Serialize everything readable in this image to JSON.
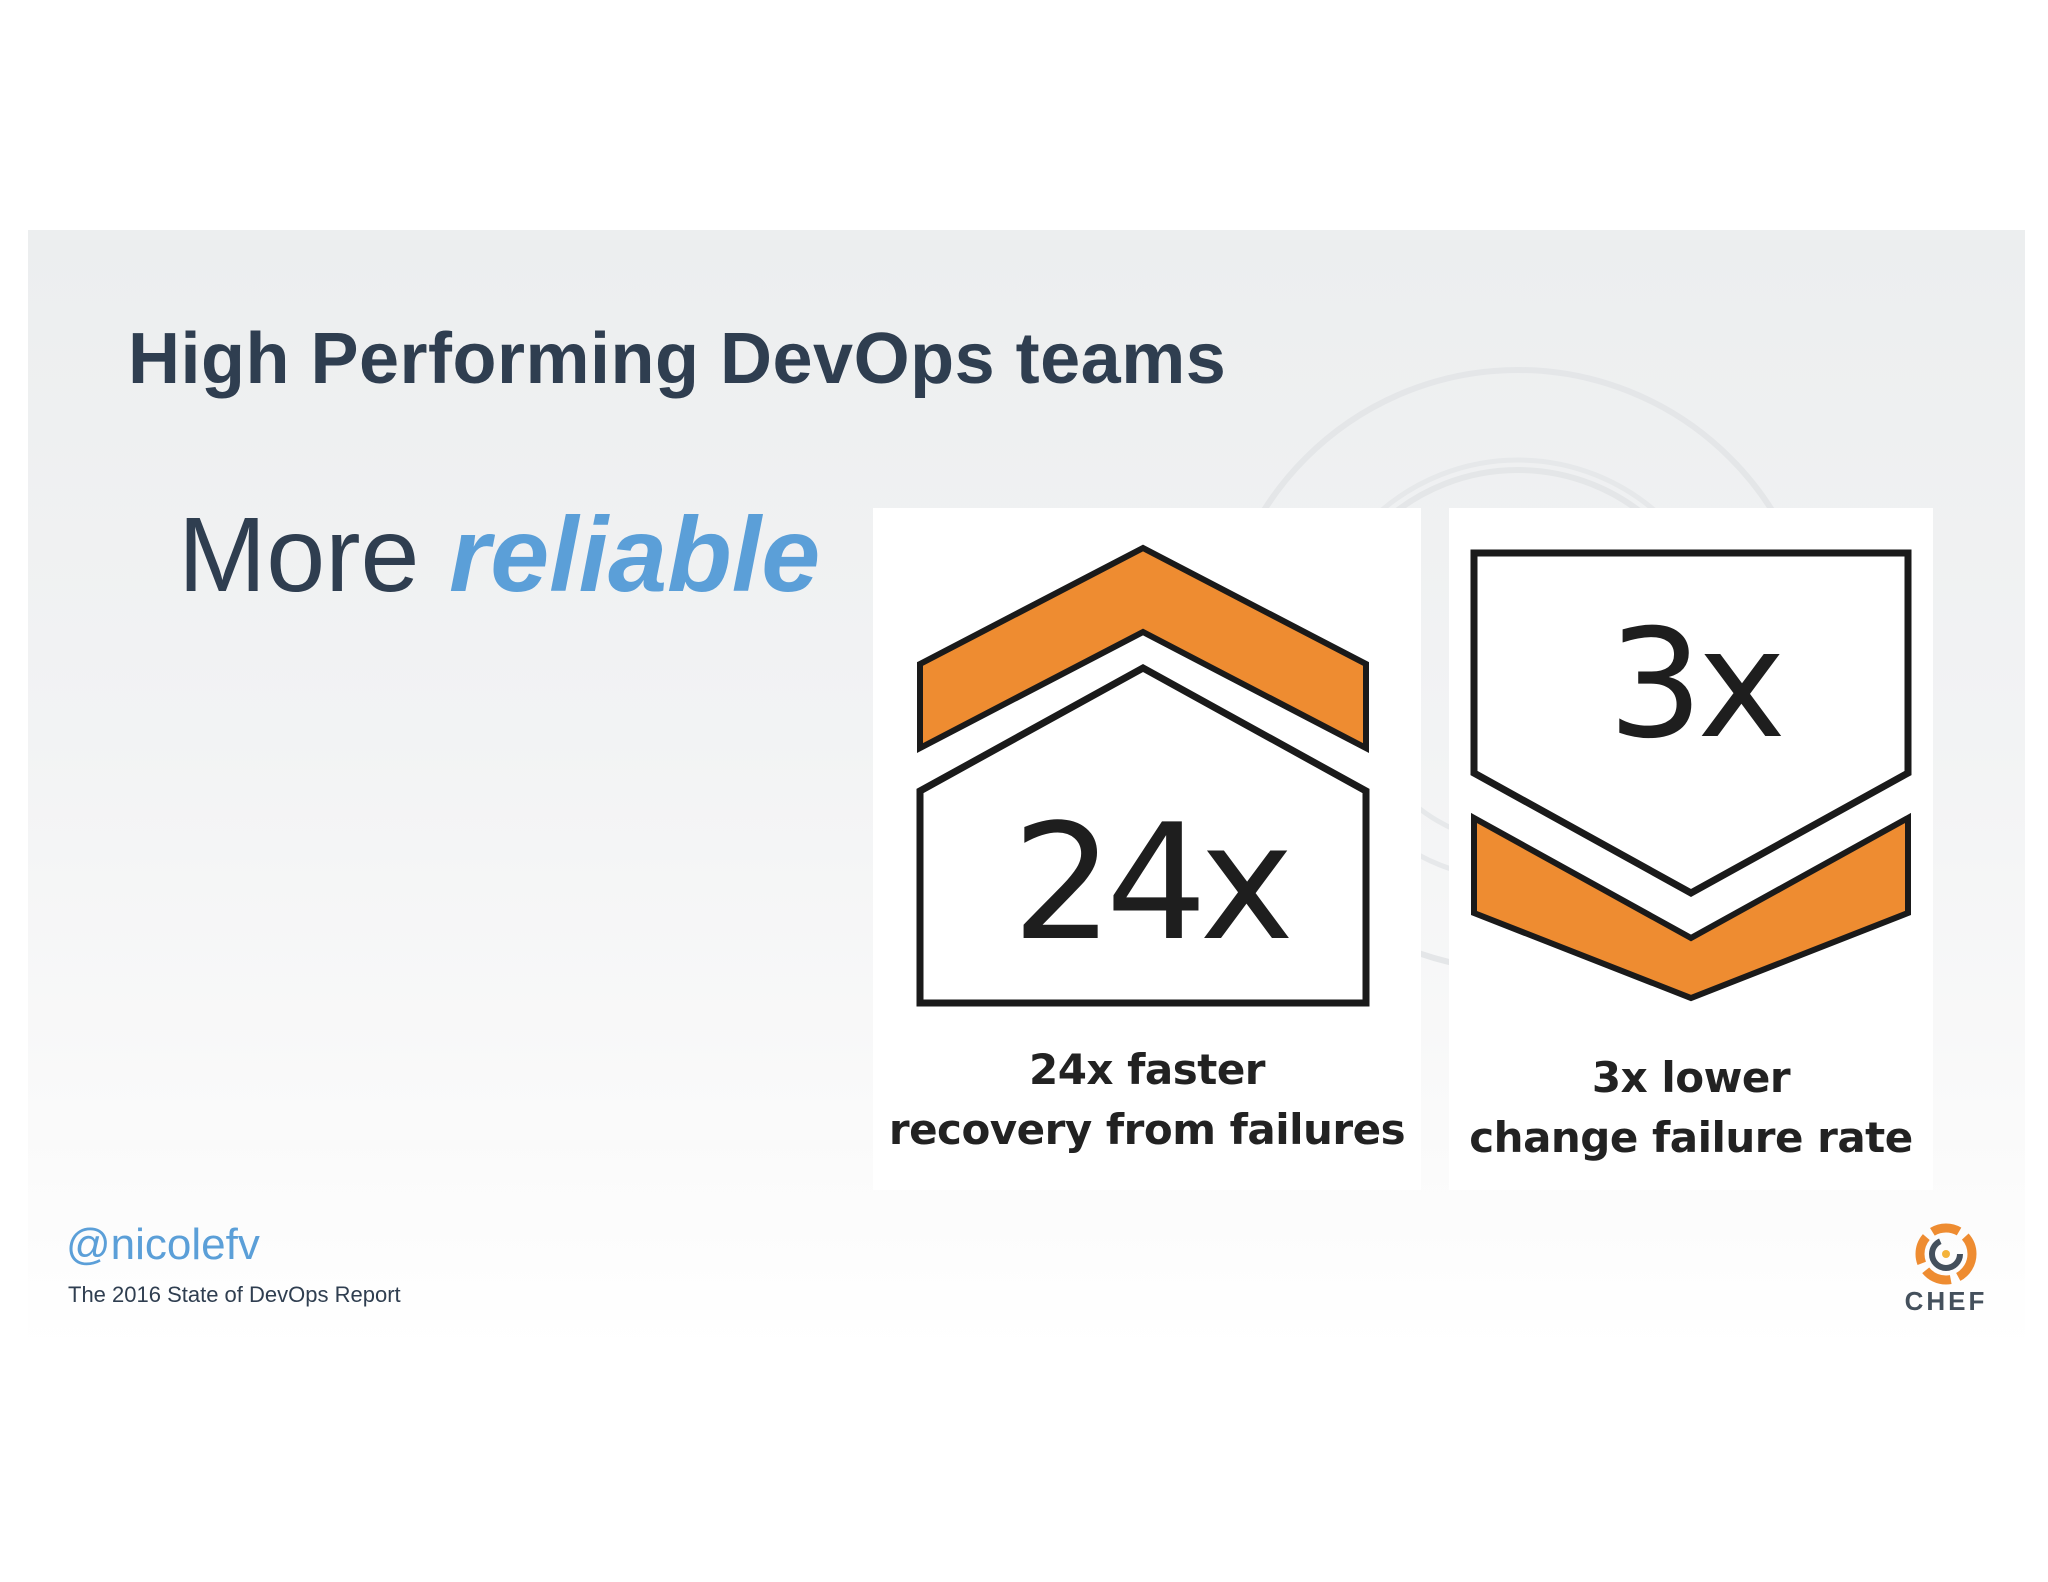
{
  "slide": {
    "title": "High Performing DevOps teams",
    "subtitle_lead": "More",
    "subtitle_emphasis": "reliable"
  },
  "cards": [
    {
      "metric": "24x",
      "caption_line1": "24x faster",
      "caption_line2": "recovery from failures",
      "icon": "house-up-chevron-icon"
    },
    {
      "metric": "3x",
      "caption_line1": "3x lower",
      "caption_line2": "change failure rate",
      "icon": "shield-down-chevron-icon"
    }
  ],
  "footer": {
    "handle": "@nicolefv",
    "source": "The 2016 State of DevOps Report"
  },
  "logo": {
    "name": "CHEF",
    "icon": "chef-logo-icon"
  },
  "colors": {
    "title": "#2f3e50",
    "accent_blue": "#5b9fd8",
    "accent_orange": "#ee8c31"
  }
}
